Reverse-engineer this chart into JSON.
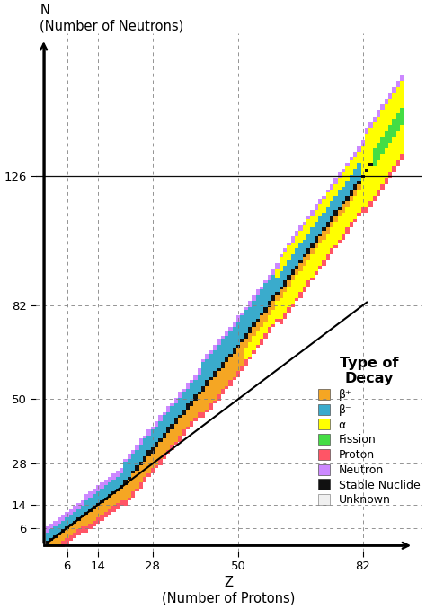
{
  "xlabel": "Z\n(Number of Protons)",
  "ylabel": "N\n(Number of Neutrons)",
  "xlim": [
    -2,
    97
  ],
  "ylim": [
    -2,
    175
  ],
  "magic_numbers_x": [
    6,
    14,
    28,
    50,
    82
  ],
  "magic_numbers_y": [
    6,
    14,
    28,
    50,
    82,
    126
  ],
  "colors": {
    "beta_plus": "#F5A623",
    "beta_minus": "#3AABCC",
    "alpha": "#FFFF00",
    "fission": "#44DD44",
    "proton": "#FF5566",
    "neutron": "#CC88FF",
    "stable": "#111111",
    "unknown": "#F0F0F0"
  },
  "legend_title": "Type of\nDecay",
  "legend_entries": [
    {
      "label": "β⁺",
      "color": "#F5A623"
    },
    {
      "label": "β⁻",
      "color": "#3AABCC"
    },
    {
      "label": "α",
      "color": "#FFFF00"
    },
    {
      "label": "Fission",
      "color": "#44DD44"
    },
    {
      "label": "Proton",
      "color": "#FF5566"
    },
    {
      "label": "Neutron",
      "color": "#CC88FF"
    },
    {
      "label": "Stable Nuclide",
      "color": "#111111"
    },
    {
      "label": "Unknown",
      "color": "#F0F0F0"
    }
  ]
}
